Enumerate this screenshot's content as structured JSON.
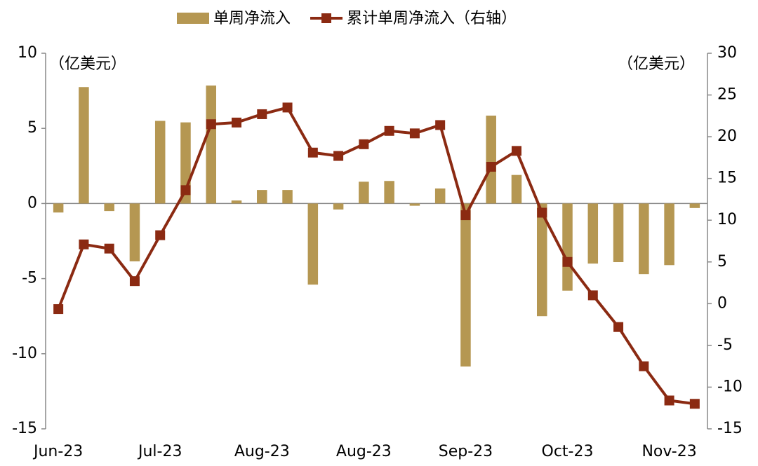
{
  "chart_data": {
    "type": "bar_line",
    "categories": [
      "Jun-23",
      null,
      null,
      null,
      "Jul-23",
      null,
      null,
      null,
      "Aug-23",
      null,
      null,
      null,
      "Aug-23",
      null,
      null,
      null,
      "Sep-23",
      null,
      null,
      null,
      "Oct-23",
      null,
      null,
      null,
      "Nov-23",
      null
    ],
    "series": [
      {
        "name": "单周净流入",
        "type": "bar",
        "color": "#b59752",
        "values": [
          -0.6,
          7.75,
          -0.5,
          -3.85,
          5.5,
          5.4,
          7.85,
          0.2,
          0.9,
          0.9,
          -5.4,
          -0.4,
          1.45,
          1.5,
          -0.15,
          1.0,
          -10.85,
          5.85,
          1.9,
          -7.5,
          -5.8,
          -4.0,
          -3.9,
          -4.7,
          -4.1,
          -0.3
        ]
      },
      {
        "name": "累计单周净流入（右轴）",
        "type": "line",
        "axis": "y2",
        "color": "#8b2a12",
        "values": [
          -0.65,
          7.1,
          6.6,
          2.7,
          8.2,
          13.6,
          21.5,
          21.7,
          22.7,
          23.5,
          18.1,
          17.7,
          19.1,
          20.7,
          20.4,
          21.4,
          10.6,
          16.4,
          18.3,
          10.9,
          5.0,
          1.0,
          -2.8,
          -7.5,
          -11.6,
          -12.0
        ]
      }
    ],
    "ylim": [
      -15,
      10
    ],
    "yticks": [
      -15,
      -10,
      -5,
      0,
      5,
      10
    ],
    "y2lim": [
      -15,
      30
    ],
    "y2ticks": [
      -15,
      -10,
      -5,
      0,
      5,
      10,
      15,
      20,
      25,
      30
    ],
    "y_unit": "（亿美元）",
    "y2_unit": "（亿美元）",
    "legend": "top"
  }
}
